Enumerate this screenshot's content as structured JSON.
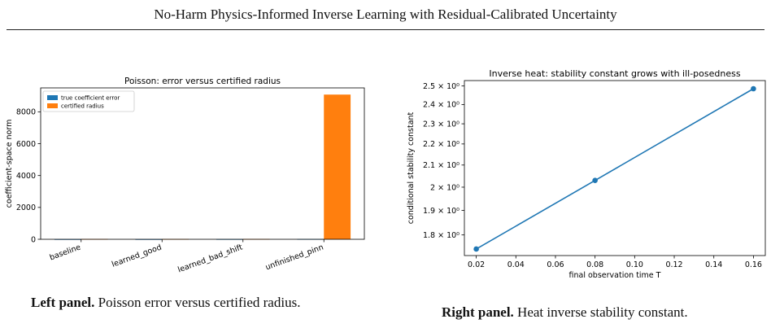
{
  "paper_title": "No-Harm Physics-Informed Inverse Learning with Residual-Calibrated Uncertainty",
  "captions": {
    "left_bold": "Left panel.",
    "left_text": " Poisson error versus certified radius.",
    "right_bold": "Right panel.",
    "right_text": " Heat inverse stability constant."
  },
  "chart_data": [
    {
      "type": "bar",
      "title": "Poisson: error versus certified radius",
      "xlabel": "",
      "ylabel": "coefficient-space norm",
      "categories": [
        "baseline",
        "learned_good",
        "learned_bad_shift",
        "unfinished_pinn"
      ],
      "series": [
        {
          "name": "true coefficient error",
          "values": [
            6,
            6,
            10,
            14
          ],
          "color": "#1f77b4"
        },
        {
          "name": "certified radius",
          "values": [
            20,
            18,
            22,
            9080
          ],
          "color": "#ff7f0e"
        }
      ],
      "ylim": [
        0,
        9500
      ],
      "yticks": [
        0,
        2000,
        4000,
        6000,
        8000
      ],
      "legend": "top-left",
      "grid": false
    },
    {
      "type": "line",
      "title": "Inverse heat: stability constant grows with ill-posedness",
      "xlabel": "final observation time T",
      "ylabel": "conditional stability constant",
      "x": [
        0.02,
        0.08,
        0.16
      ],
      "y": [
        1.745,
        2.03,
        2.485
      ],
      "yscale": "log",
      "xlim": [
        0.014,
        0.166
      ],
      "ylim": [
        1.72,
        2.53
      ],
      "xticks": [
        0.02,
        0.04,
        0.06,
        0.08,
        0.1,
        0.12,
        0.14,
        0.16
      ],
      "xtick_labels": [
        "0.02",
        "0.04",
        "0.06",
        "0.08",
        "0.10",
        "0.12",
        "0.14",
        "0.16"
      ],
      "yticks": [
        1.8,
        1.9,
        2.0,
        2.1,
        2.2,
        2.3,
        2.4,
        2.5
      ],
      "ytick_labels": [
        "1.8 × 10⁰",
        "1.9 × 10⁰",
        "2 × 10⁰",
        "2.1 × 10⁰",
        "2.2 × 10⁰",
        "2.3 × 10⁰",
        "2.4 × 10⁰",
        "2.5 × 10⁰"
      ],
      "color": "#1f77b4",
      "grid": false
    }
  ]
}
